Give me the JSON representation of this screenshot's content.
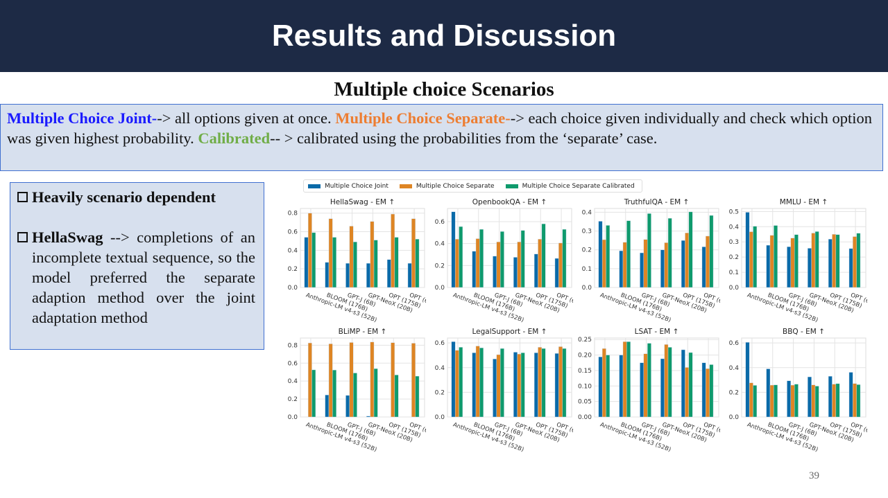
{
  "header": {
    "title": "Results and Discussion"
  },
  "subtitle": "Multiple choice Scenarios",
  "intro": {
    "joint_label": "Multiple Choice Joint-",
    "joint_text": "-> all options given at once. ",
    "separate_label": "Multiple Choice Separate-",
    "separate_text": "-> each choice given individually and check which option was given highest probability. ",
    "calibrated_label": "Calibrated",
    "calibrated_text": "-- > calibrated using the probabilities from the ‘separate’ case."
  },
  "bullets": [
    {
      "bold": "Heavily scenario dependent",
      "text": ""
    },
    {
      "bold": "HellaSwag",
      "text": " --> completions of an incomplete textual sequence, so the model preferred the separate adaption method over the joint adaptation method"
    }
  ],
  "legend": [
    {
      "name": "Multiple Choice Joint",
      "color": "#0a6aa8"
    },
    {
      "name": "Multiple Choice Separate",
      "color": "#de8524"
    },
    {
      "name": "Multiple Choice Separate Calibrated",
      "color": "#0f9a6c"
    }
  ],
  "page_number": "39",
  "chart_data": [
    {
      "type": "bar",
      "title": "HellaSwag - EM ↑",
      "categories": [
        "Anthropic-LM v4-s3 (52B)",
        "BLOOM (176B)",
        "GPT-J (6B)",
        "GPT-NeoX (20B)",
        "OPT (175B)",
        "OPT (66B)"
      ],
      "ylim": [
        0,
        0.85
      ],
      "yticks": [
        "0.0",
        "0.2",
        "0.4",
        "0.6",
        "0.8"
      ],
      "grid": true,
      "series": [
        {
          "name": "Multiple Choice Joint",
          "values": [
            0.54,
            0.27,
            0.26,
            0.26,
            0.3,
            0.26
          ]
        },
        {
          "name": "Multiple Choice Separate",
          "values": [
            0.8,
            0.74,
            0.66,
            0.71,
            0.79,
            0.74
          ]
        },
        {
          "name": "Multiple Choice Separate Calibrated",
          "values": [
            0.59,
            0.54,
            0.49,
            0.51,
            0.54,
            0.52
          ]
        }
      ]
    },
    {
      "type": "bar",
      "title": "OpenbookQA - EM ↑",
      "categories": [
        "Anthropic-LM v4-s3 (52B)",
        "BLOOM (176B)",
        "GPT-J (6B)",
        "GPT-NeoX (20B)",
        "OPT (175B)",
        "OPT (66B)"
      ],
      "ylim": [
        0,
        0.72
      ],
      "yticks": [
        "0.0",
        "0.2",
        "0.4",
        "0.6"
      ],
      "grid": true,
      "series": [
        {
          "name": "Multiple Choice Joint",
          "values": [
            0.69,
            0.33,
            0.285,
            0.275,
            0.305,
            0.265
          ]
        },
        {
          "name": "Multiple Choice Separate",
          "values": [
            0.44,
            0.445,
            0.415,
            0.415,
            0.44,
            0.405
          ]
        },
        {
          "name": "Multiple Choice Separate Calibrated",
          "values": [
            0.555,
            0.53,
            0.51,
            0.52,
            0.58,
            0.53
          ]
        }
      ]
    },
    {
      "type": "bar",
      "title": "TruthfulQA - EM ↑",
      "categories": [
        "Anthropic-LM v4-s3 (52B)",
        "BLOOM (176B)",
        "GPT-J (6B)",
        "GPT-NeoX (20B)",
        "OPT (175B)",
        "OPT (66B)"
      ],
      "ylim": [
        0,
        0.42
      ],
      "yticks": [
        "0.0",
        "0.1",
        "0.2",
        "0.3",
        "0.4"
      ],
      "grid": true,
      "series": [
        {
          "name": "Multiple Choice Joint",
          "values": [
            0.352,
            0.195,
            0.184,
            0.2,
            0.25,
            0.216
          ]
        },
        {
          "name": "Multiple Choice Separate",
          "values": [
            0.254,
            0.24,
            0.255,
            0.238,
            0.29,
            0.273
          ]
        },
        {
          "name": "Multiple Choice Separate Calibrated",
          "values": [
            0.33,
            0.355,
            0.393,
            0.368,
            0.402,
            0.383
          ]
        }
      ]
    },
    {
      "type": "bar",
      "title": "MMLU - EM ↑",
      "categories": [
        "Anthropic-LM v4-s3 (52B)",
        "BLOOM (176B)",
        "GPT-J (6B)",
        "GPT-NeoX (20B)",
        "OPT (175B)",
        "OPT (66B)"
      ],
      "ylim": [
        0,
        0.52
      ],
      "yticks": [
        "0.0",
        "0.1",
        "0.2",
        "0.3",
        "0.4",
        "0.5"
      ],
      "grid": true,
      "series": [
        {
          "name": "Multiple Choice Joint",
          "values": [
            0.495,
            0.278,
            0.268,
            0.258,
            0.318,
            0.256
          ]
        },
        {
          "name": "Multiple Choice Separate",
          "values": [
            0.367,
            0.343,
            0.325,
            0.358,
            0.35,
            0.335
          ]
        },
        {
          "name": "Multiple Choice Separate Calibrated",
          "values": [
            0.403,
            0.408,
            0.348,
            0.368,
            0.348,
            0.357
          ]
        }
      ]
    },
    {
      "type": "bar",
      "title": "BLiMP - EM ↑",
      "categories": [
        "Anthropic-LM v4-s3 (52B)",
        "BLOOM (176B)",
        "GPT-J (6B)",
        "GPT-NeoX (20B)",
        "OPT (175B)",
        "OPT (66B)"
      ],
      "ylim": [
        0,
        0.88
      ],
      "yticks": [
        "0.0",
        "0.2",
        "0.4",
        "0.6",
        "0.8"
      ],
      "grid": true,
      "series": [
        {
          "name": "Multiple Choice Joint",
          "values": [
            0,
            0.245,
            0.24,
            0.01,
            0,
            0
          ]
        },
        {
          "name": "Multiple Choice Separate",
          "values": [
            0.825,
            0.815,
            0.83,
            0.835,
            0.828,
            0.822
          ]
        },
        {
          "name": "Multiple Choice Separate Calibrated",
          "values": [
            0.525,
            0.523,
            0.49,
            0.538,
            0.468,
            0.455
          ]
        }
      ]
    },
    {
      "type": "bar",
      "title": "LegalSupport - EM ↑",
      "categories": [
        "Anthropic-LM v4-s3 (52B)",
        "BLOOM (176B)",
        "GPT-J (6B)",
        "GPT-NeoX (20B)",
        "OPT (175B)",
        "OPT (66B)"
      ],
      "ylim": [
        0,
        0.64
      ],
      "yticks": [
        "0.0",
        "0.2",
        "0.4",
        "0.6"
      ],
      "grid": true,
      "series": [
        {
          "name": "Multiple Choice Joint",
          "values": [
            0.61,
            0.52,
            0.47,
            0.525,
            0.52,
            0.515
          ]
        },
        {
          "name": "Multiple Choice Separate",
          "values": [
            0.54,
            0.575,
            0.505,
            0.51,
            0.565,
            0.57
          ]
        },
        {
          "name": "Multiple Choice Separate Calibrated",
          "values": [
            0.565,
            0.56,
            0.555,
            0.52,
            0.555,
            0.555
          ]
        }
      ]
    },
    {
      "type": "bar",
      "title": "LSAT - EM ↑",
      "categories": [
        "Anthropic-LM v4-s3 (52B)",
        "BLOOM (176B)",
        "GPT-J (6B)",
        "GPT-NeoX (20B)",
        "OPT (175B)",
        "OPT (66B)"
      ],
      "ylim": [
        0,
        0.255
      ],
      "yticks": [
        "0.00",
        "0.05",
        "0.10",
        "0.15",
        "0.20",
        "0.25"
      ],
      "grid": true,
      "series": [
        {
          "name": "Multiple Choice Joint",
          "values": [
            0.194,
            0.2,
            0.175,
            0.188,
            0.217,
            0.175
          ]
        },
        {
          "name": "Multiple Choice Separate",
          "values": [
            0.221,
            0.243,
            0.204,
            0.234,
            0.16,
            0.156
          ]
        },
        {
          "name": "Multiple Choice Separate Calibrated",
          "values": [
            0.2,
            0.243,
            0.238,
            0.225,
            0.208,
            0.169
          ]
        }
      ]
    },
    {
      "type": "bar",
      "title": "BBQ - EM ↑",
      "categories": [
        "Anthropic-LM v4-s3 (52B)",
        "BLOOM (176B)",
        "GPT-J (6B)",
        "GPT-NeoX (20B)",
        "OPT (175B)",
        "OPT (66B)"
      ],
      "ylim": [
        0,
        0.64
      ],
      "yticks": [
        "0.0",
        "0.2",
        "0.4",
        "0.6"
      ],
      "grid": true,
      "series": [
        {
          "name": "Multiple Choice Joint",
          "values": [
            0.605,
            0.39,
            0.293,
            0.325,
            0.33,
            0.362
          ]
        },
        {
          "name": "Multiple Choice Separate",
          "values": [
            0.277,
            0.258,
            0.258,
            0.26,
            0.266,
            0.271
          ]
        },
        {
          "name": "Multiple Choice Separate Calibrated",
          "values": [
            0.256,
            0.26,
            0.266,
            0.25,
            0.27,
            0.262
          ]
        }
      ]
    }
  ]
}
